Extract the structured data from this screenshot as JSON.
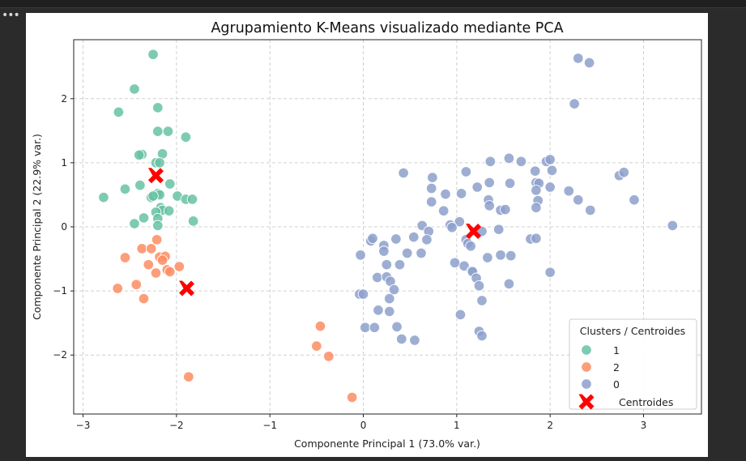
{
  "chart_data": {
    "type": "scatter",
    "title": "Agrupamiento K-Means visualizado mediante PCA",
    "xlabel": "Componente Principal 1 (73.0% var.)",
    "ylabel": "Componente Principal 2 (22.9% var.)",
    "xlim": [
      -3.1,
      3.62
    ],
    "ylim": [
      -2.92,
      2.92
    ],
    "xticks": [
      -3,
      -2,
      -1,
      0,
      1,
      2,
      3
    ],
    "yticks": [
      -2,
      -1,
      0,
      1,
      2
    ],
    "grid": true,
    "legend": {
      "title": "Clusters / Centroides",
      "placement": "lower-right"
    },
    "series": [
      {
        "name": "1",
        "color": "#66c2a5",
        "points": [
          [
            -2.25,
            2.69
          ],
          [
            -2.45,
            2.15
          ],
          [
            -2.62,
            1.79
          ],
          [
            -2.2,
            1.86
          ],
          [
            -2.2,
            1.49
          ],
          [
            -2.09,
            1.49
          ],
          [
            -1.9,
            1.4
          ],
          [
            -2.37,
            1.13
          ],
          [
            -2.4,
            1.12
          ],
          [
            -2.15,
            1.14
          ],
          [
            -2.22,
            1.0
          ],
          [
            -2.18,
            1.0
          ],
          [
            -2.07,
            0.67
          ],
          [
            -2.39,
            0.65
          ],
          [
            -2.55,
            0.59
          ],
          [
            -2.78,
            0.46
          ],
          [
            -2.27,
            0.46
          ],
          [
            -2.2,
            0.52
          ],
          [
            -2.18,
            0.5
          ],
          [
            -2.25,
            0.48
          ],
          [
            -1.99,
            0.48
          ],
          [
            -1.9,
            0.43
          ],
          [
            -1.83,
            0.43
          ],
          [
            -2.17,
            0.3
          ],
          [
            -2.15,
            0.26
          ],
          [
            -2.22,
            0.23
          ],
          [
            -2.08,
            0.25
          ],
          [
            -2.35,
            0.14
          ],
          [
            -2.2,
            0.13
          ],
          [
            -2.45,
            0.05
          ],
          [
            -2.2,
            0.02
          ],
          [
            -1.82,
            0.09
          ]
        ]
      },
      {
        "name": "2",
        "color": "#fc8d62",
        "points": [
          [
            -2.21,
            -0.2
          ],
          [
            -2.37,
            -0.34
          ],
          [
            -2.27,
            -0.34
          ],
          [
            -2.55,
            -0.48
          ],
          [
            -2.18,
            -0.47
          ],
          [
            -2.12,
            -0.46
          ],
          [
            -2.15,
            -0.52
          ],
          [
            -2.3,
            -0.59
          ],
          [
            -1.97,
            -0.62
          ],
          [
            -2.1,
            -0.67
          ],
          [
            -2.07,
            -0.7
          ],
          [
            -2.22,
            -0.72
          ],
          [
            -2.43,
            -0.9
          ],
          [
            -2.63,
            -0.96
          ],
          [
            -2.35,
            -1.12
          ],
          [
            -1.87,
            -2.34
          ],
          [
            -0.46,
            -1.55
          ],
          [
            -0.5,
            -1.86
          ],
          [
            -0.37,
            -2.02
          ],
          [
            -0.12,
            -2.66
          ]
        ]
      },
      {
        "name": "0",
        "color": "#8da0cb",
        "points": [
          [
            2.3,
            2.63
          ],
          [
            2.42,
            2.56
          ],
          [
            2.26,
            1.92
          ],
          [
            1.56,
            1.07
          ],
          [
            1.69,
            1.02
          ],
          [
            1.96,
            1.02
          ],
          [
            2.0,
            1.05
          ],
          [
            1.36,
            1.02
          ],
          [
            1.84,
            0.87
          ],
          [
            2.02,
            0.88
          ],
          [
            1.1,
            0.86
          ],
          [
            0.43,
            0.84
          ],
          [
            1.35,
            0.69
          ],
          [
            1.57,
            0.68
          ],
          [
            1.85,
            0.69
          ],
          [
            1.88,
            0.68
          ],
          [
            2.74,
            0.8
          ],
          [
            2.79,
            0.85
          ],
          [
            0.74,
            0.77
          ],
          [
            1.22,
            0.62
          ],
          [
            2.0,
            0.62
          ],
          [
            2.2,
            0.56
          ],
          [
            1.85,
            0.57
          ],
          [
            0.73,
            0.6
          ],
          [
            0.88,
            0.51
          ],
          [
            1.05,
            0.52
          ],
          [
            1.34,
            0.42
          ],
          [
            1.87,
            0.41
          ],
          [
            2.3,
            0.42
          ],
          [
            2.9,
            0.42
          ],
          [
            0.73,
            0.39
          ],
          [
            1.35,
            0.33
          ],
          [
            1.47,
            0.26
          ],
          [
            1.52,
            0.27
          ],
          [
            1.85,
            0.3
          ],
          [
            2.43,
            0.26
          ],
          [
            0.86,
            0.25
          ],
          [
            1.03,
            0.08
          ],
          [
            0.93,
            0.03
          ],
          [
            0.63,
            0.02
          ],
          [
            0.95,
            -0.01
          ],
          [
            3.31,
            0.02
          ],
          [
            1.27,
            -0.07
          ],
          [
            1.45,
            -0.04
          ],
          [
            0.7,
            -0.07
          ],
          [
            0.54,
            -0.16
          ],
          [
            0.08,
            -0.22
          ],
          [
            0.1,
            -0.18
          ],
          [
            0.68,
            -0.2
          ],
          [
            0.35,
            -0.19
          ],
          [
            1.1,
            -0.2
          ],
          [
            1.12,
            -0.26
          ],
          [
            1.15,
            -0.3
          ],
          [
            1.79,
            -0.19
          ],
          [
            1.85,
            -0.18
          ],
          [
            0.22,
            -0.29
          ],
          [
            0.22,
            -0.38
          ],
          [
            0.47,
            -0.41
          ],
          [
            0.62,
            -0.41
          ],
          [
            -0.03,
            -0.44
          ],
          [
            1.33,
            -0.48
          ],
          [
            1.47,
            -0.44
          ],
          [
            1.58,
            -0.45
          ],
          [
            0.98,
            -0.56
          ],
          [
            1.08,
            -0.61
          ],
          [
            0.25,
            -0.59
          ],
          [
            0.39,
            -0.59
          ],
          [
            1.16,
            -0.69
          ],
          [
            1.17,
            -0.7
          ],
          [
            2.0,
            -0.71
          ],
          [
            0.15,
            -0.79
          ],
          [
            0.25,
            -0.78
          ],
          [
            0.29,
            -0.85
          ],
          [
            1.21,
            -0.8
          ],
          [
            1.24,
            -0.92
          ],
          [
            1.56,
            -0.89
          ],
          [
            0.33,
            -0.98
          ],
          [
            -0.04,
            -1.05
          ],
          [
            0.0,
            -1.05
          ],
          [
            0.28,
            -1.12
          ],
          [
            1.27,
            -1.15
          ],
          [
            0.16,
            -1.3
          ],
          [
            0.28,
            -1.32
          ],
          [
            1.04,
            -1.37
          ],
          [
            0.02,
            -1.57
          ],
          [
            0.12,
            -1.57
          ],
          [
            0.36,
            -1.56
          ],
          [
            1.24,
            -1.63
          ],
          [
            1.27,
            -1.7
          ],
          [
            0.41,
            -1.75
          ],
          [
            0.55,
            -1.77
          ]
        ]
      }
    ],
    "centroids": {
      "name": "Centroides",
      "color": "#ff0000",
      "points": [
        [
          -2.22,
          0.8
        ],
        [
          -1.89,
          -0.96
        ],
        [
          1.18,
          -0.07
        ]
      ]
    }
  }
}
